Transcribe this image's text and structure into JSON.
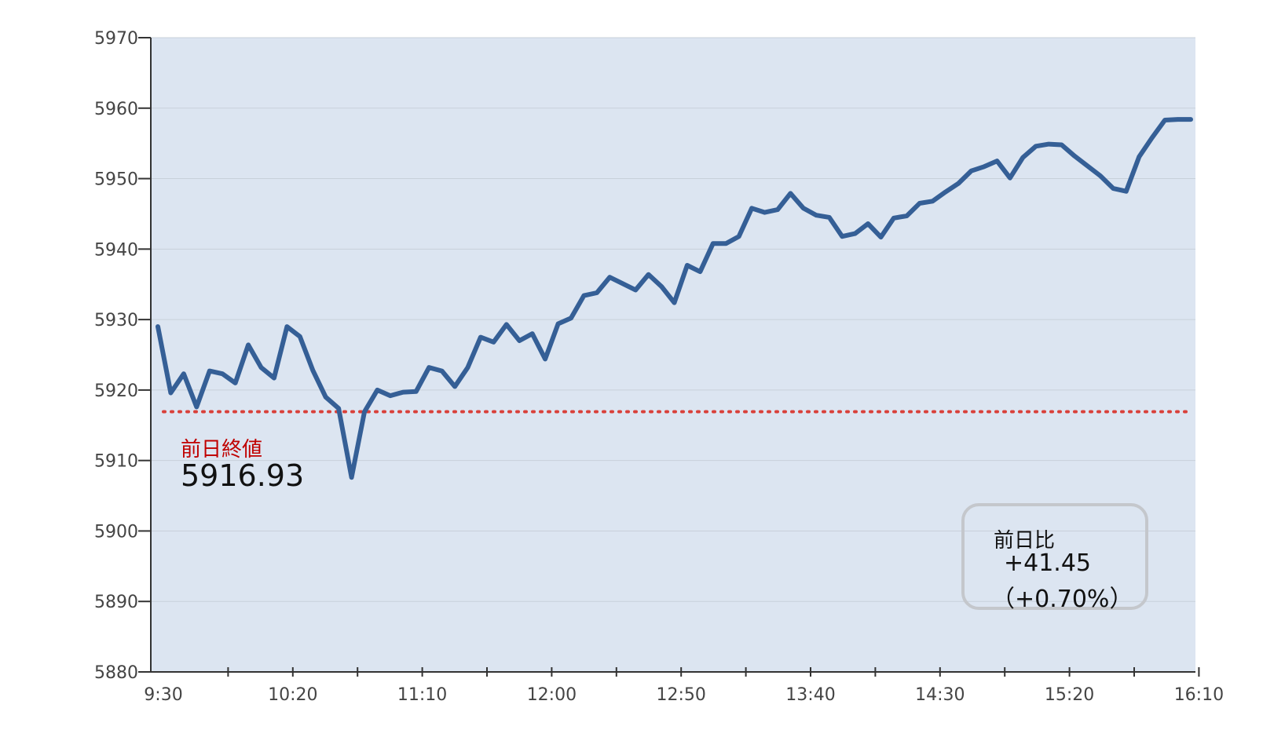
{
  "chart_data": {
    "type": "line",
    "title": "",
    "xlabel": "",
    "ylabel": "",
    "ylim": [
      5880,
      5970
    ],
    "y_ticks": [
      5880,
      5890,
      5900,
      5910,
      5920,
      5930,
      5940,
      5950,
      5960,
      5970
    ],
    "x_ticks": [
      "9:30",
      "10:20",
      "11:10",
      "12:00",
      "12:50",
      "13:40",
      "14:30",
      "15:20",
      "16:10"
    ],
    "grid": true,
    "colors": {
      "line": "#355f96",
      "plot_bg": "#dce5f1",
      "ref_line": "#d9403a",
      "ref_label": "#c00000"
    },
    "series": [
      {
        "name": "",
        "values": [
          5929.0,
          5919.6,
          5922.3,
          5917.6,
          5922.7,
          5922.3,
          5921.0,
          5926.4,
          5923.2,
          5921.7,
          5929.0,
          5927.6,
          5922.8,
          5919.0,
          5917.4,
          5907.6,
          5916.9,
          5920.0,
          5919.2,
          5919.7,
          5919.8,
          5923.2,
          5922.7,
          5920.5,
          5923.2,
          5927.5,
          5926.8,
          5929.3,
          5927.0,
          5928.0,
          5924.4,
          5929.4,
          5930.2,
          5933.4,
          5933.8,
          5936.0,
          5935.1,
          5934.2,
          5936.4,
          5934.7,
          5932.4,
          5937.7,
          5936.8,
          5940.8,
          5940.8,
          5941.8,
          5945.8,
          5945.2,
          5945.6,
          5947.9,
          5945.8,
          5944.8,
          5944.5,
          5941.8,
          5942.2,
          5943.6,
          5941.7,
          5944.4,
          5944.7,
          5946.5,
          5946.8,
          5948.1,
          5949.3,
          5951.1,
          5951.7,
          5952.5,
          5950.1,
          5953.0,
          5954.6,
          5954.9,
          5954.8,
          5953.2,
          5951.8,
          5950.4,
          5948.6,
          5948.2,
          5953.1,
          5955.8,
          5958.3,
          5958.4,
          5958.4
        ]
      }
    ],
    "reference_line": {
      "value": 5916.93
    }
  },
  "annotations": {
    "prev_close_label": "前日終値",
    "prev_close_value": "5916.93",
    "change_title": "前日比",
    "change_value": "+41.45",
    "change_pct": "（+0.70%）"
  }
}
